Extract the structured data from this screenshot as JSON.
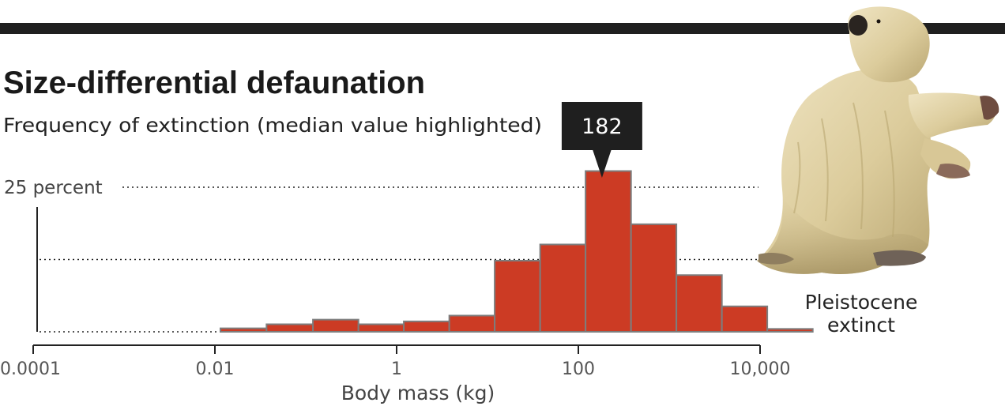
{
  "chart_data": {
    "type": "bar",
    "title": "Size-differential defaunation",
    "subtitle": "Frequency of extinction (median value highlighted)",
    "xlabel": "Body mass (kg)",
    "ylabel": "",
    "x_scale": "log10",
    "xlim": [
      0.0001,
      35000
    ],
    "ylim": [
      0,
      25
    ],
    "y_tick_label": "25 percent",
    "y_gridlines": [
      0,
      12.5,
      25
    ],
    "x_ticks": [
      {
        "value": 0.0001,
        "label": "0.0001"
      },
      {
        "value": 0.01,
        "label": "0.01"
      },
      {
        "value": 1,
        "label": "1"
      },
      {
        "value": 100,
        "label": "100"
      },
      {
        "value": 10000,
        "label": "10,000"
      }
    ],
    "bins": [
      {
        "from": 0.0115,
        "to": 0.037,
        "value": 0.6
      },
      {
        "from": 0.037,
        "to": 0.12,
        "value": 1.3
      },
      {
        "from": 0.12,
        "to": 0.38,
        "value": 2.1
      },
      {
        "from": 0.38,
        "to": 1.2,
        "value": 1.3
      },
      {
        "from": 1.2,
        "to": 3.8,
        "value": 1.8
      },
      {
        "from": 3.8,
        "to": 12,
        "value": 2.8
      },
      {
        "from": 12,
        "to": 38,
        "value": 12.3
      },
      {
        "from": 38,
        "to": 120,
        "value": 15.1
      },
      {
        "from": 120,
        "to": 380,
        "value": 27.8
      },
      {
        "from": 380,
        "to": 1200,
        "value": 18.6
      },
      {
        "from": 1200,
        "to": 3800,
        "value": 9.8
      },
      {
        "from": 3800,
        "to": 12000,
        "value": 4.4
      },
      {
        "from": 12000,
        "to": 38000,
        "value": 0.5
      }
    ],
    "median": {
      "value": 182,
      "label": "182"
    },
    "series_label": [
      "Pleistocene",
      "extinct"
    ],
    "legend": "right",
    "grid": "dotted",
    "colors": {
      "bar": "#cc3b24",
      "bar_stroke": "#7d7d7d",
      "text": "#222222",
      "muted": "#777777",
      "callout": "#1f1f1f"
    }
  },
  "illustration": {
    "name": "giant ground sloth"
  }
}
